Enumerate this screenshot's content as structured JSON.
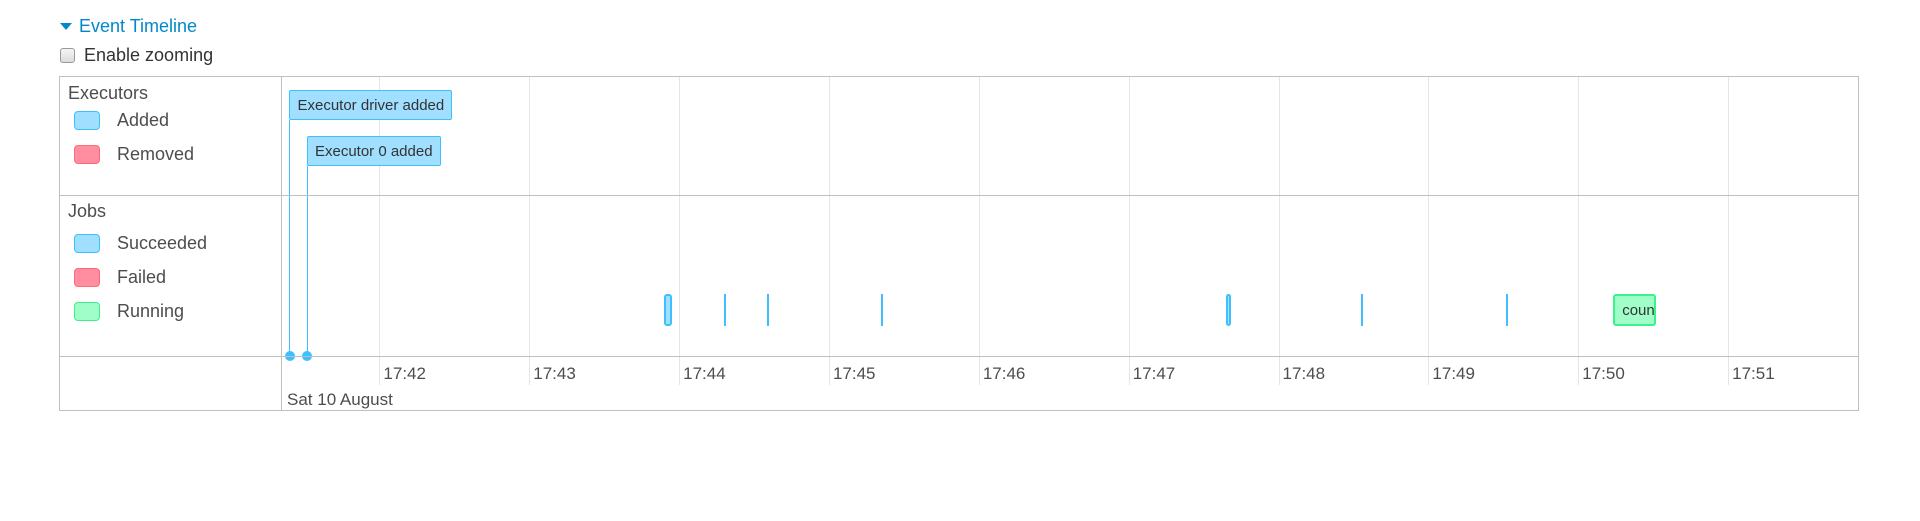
{
  "header": {
    "title": "Event Timeline",
    "expanded_icon": "caret-down-icon"
  },
  "zoom_toggle": {
    "label": "Enable zooming",
    "checked": false
  },
  "colors": {
    "succeeded_fill": "#a0dfff",
    "succeeded_border": "#3ec0ff",
    "failed_fill": "#ff8fa0",
    "failed_border": "#ff6a80",
    "running_fill": "#a0ffc8",
    "running_border": "#3cf08a",
    "title": "#0088cc"
  },
  "legend": {
    "executors": {
      "title": "Executors",
      "items": [
        {
          "label": "Added",
          "status": "succeeded"
        },
        {
          "label": "Removed",
          "status": "failed"
        }
      ]
    },
    "jobs": {
      "title": "Jobs",
      "items": [
        {
          "label": "Succeeded",
          "status": "succeeded"
        },
        {
          "label": "Failed",
          "status": "failed"
        },
        {
          "label": "Running",
          "status": "running"
        }
      ]
    }
  },
  "axis": {
    "start": "17:41:21",
    "end": "17:51:52",
    "ticks": [
      "17:42",
      "17:43",
      "17:44",
      "17:45",
      "17:46",
      "17:47",
      "17:48",
      "17:49",
      "17:50",
      "17:51"
    ],
    "date_label": "Sat 10 August"
  },
  "executor_events": [
    {
      "label": "Executor driver added",
      "time": "17:41:24",
      "type": "added"
    },
    {
      "label": "Executor 0 added",
      "time": "17:41:31",
      "type": "added"
    }
  ],
  "jobs": [
    {
      "start": "17:43:54",
      "end": "17:43:57",
      "status": "succeeded",
      "label": ""
    },
    {
      "start": "17:44:18",
      "end": "17:44:18",
      "status": "succeeded",
      "label": ""
    },
    {
      "start": "17:44:35",
      "end": "17:44:35",
      "status": "succeeded",
      "label": ""
    },
    {
      "start": "17:45:21",
      "end": "17:45:21",
      "status": "succeeded",
      "label": ""
    },
    {
      "start": "17:47:39",
      "end": "17:47:41",
      "status": "succeeded",
      "label": ""
    },
    {
      "start": "17:48:33",
      "end": "17:48:33",
      "status": "succeeded",
      "label": ""
    },
    {
      "start": "17:49:31",
      "end": "17:49:31",
      "status": "succeeded",
      "label": ""
    },
    {
      "start": "17:50:14",
      "end": "17:50:31",
      "status": "running",
      "label": "count"
    }
  ]
}
